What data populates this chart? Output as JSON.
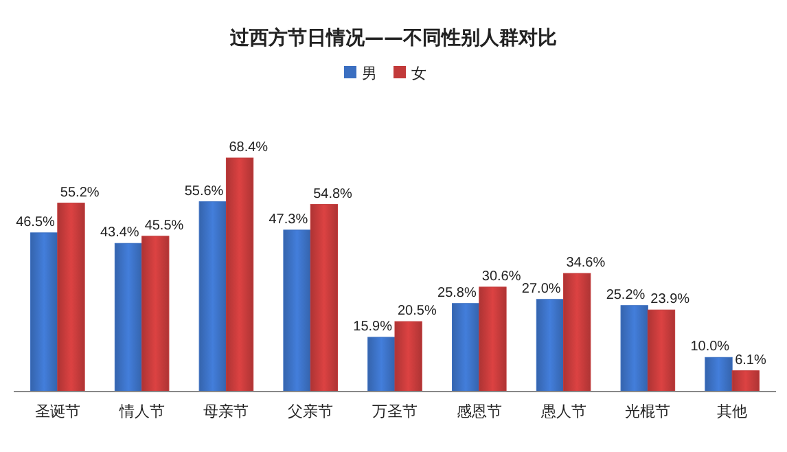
{
  "chart_data": {
    "type": "bar",
    "title": "过西方节日情况——不同性别人群对比",
    "categories": [
      "圣诞节",
      "情人节",
      "母亲节",
      "父亲节",
      "万圣节",
      "感恩节",
      "愚人节",
      "光棍节",
      "其他"
    ],
    "series": [
      {
        "name": "男",
        "color": "#3b6fc1",
        "values": [
          46.5,
          43.4,
          55.6,
          47.3,
          15.9,
          25.8,
          27.0,
          25.2,
          10.0
        ],
        "value_labels": [
          "46.5%",
          "43.4%",
          "55.6%",
          "47.3%",
          "15.9%",
          "25.8%",
          "27.0%",
          "25.2%",
          "10.0%"
        ]
      },
      {
        "name": "女",
        "color": "#c23a3a",
        "values": [
          55.2,
          45.5,
          68.4,
          54.8,
          20.5,
          30.6,
          34.6,
          23.9,
          6.1
        ],
        "value_labels": [
          "55.2%",
          "45.5%",
          "68.4%",
          "54.8%",
          "20.5%",
          "30.6%",
          "34.6%",
          "23.9%",
          "6.1%"
        ]
      }
    ],
    "legend": "top",
    "grid": false
  }
}
